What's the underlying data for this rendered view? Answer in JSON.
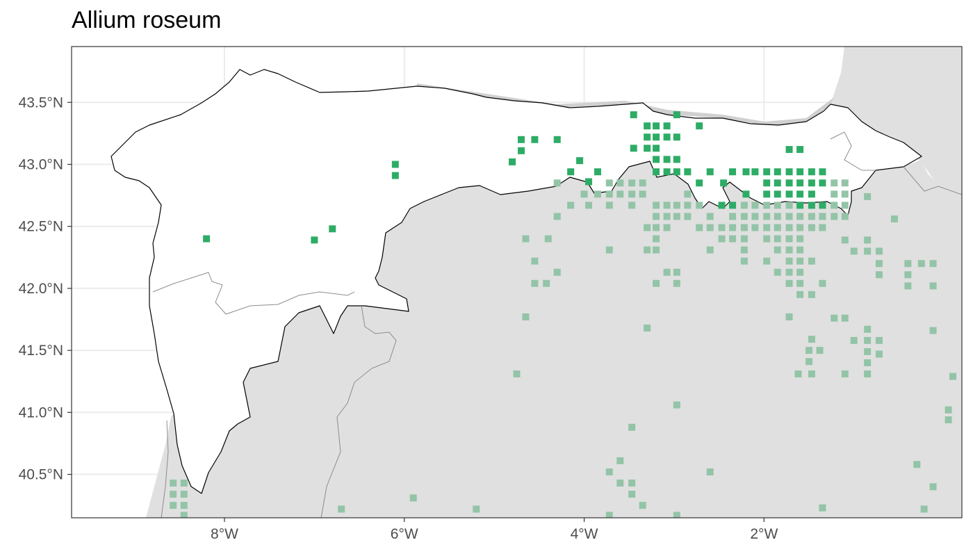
{
  "title": "Allium roseum",
  "colors": {
    "panel_bg": "#ffffff",
    "land_outside": "#e0e0e0",
    "grid": "#ebebeb",
    "region_fill": "#ffffff",
    "region_outline": "#000000",
    "province_line": "#8c8c8c",
    "occurrence_inside": "#2eac66",
    "occurrence_outside": "#93c4a7",
    "axis_text": "#4d4d4d"
  },
  "chart_data": {
    "type": "scatter",
    "title": "Allium roseum",
    "xlabel": "",
    "ylabel": "",
    "xlim": [
      -9.7,
      0.2
    ],
    "ylim": [
      40.15,
      43.95
    ],
    "x_ticks": [
      {
        "value": -8,
        "label": "8°W"
      },
      {
        "value": -6,
        "label": "6°W"
      },
      {
        "value": -4,
        "label": "4°W"
      },
      {
        "value": -2,
        "label": "2°W"
      }
    ],
    "y_ticks": [
      {
        "value": 43.5,
        "label": "43.5°N"
      },
      {
        "value": 43.0,
        "label": "43.0°N"
      },
      {
        "value": 42.5,
        "label": "42.5°N"
      },
      {
        "value": 42.0,
        "label": "42.0°N"
      },
      {
        "value": 41.5,
        "label": "41.5°N"
      },
      {
        "value": 41.0,
        "label": "41.0°N"
      },
      {
        "value": 40.5,
        "label": "40.5°N"
      }
    ],
    "grid": true,
    "legend": "none",
    "series": [
      {
        "points": [
          [
            -8.2,
            42.4
          ],
          [
            -7.0,
            42.39
          ],
          [
            -6.8,
            42.48
          ],
          [
            -6.1,
            43.0
          ],
          [
            -6.1,
            42.91
          ],
          [
            -4.8,
            43.02
          ],
          [
            -4.7,
            43.2
          ],
          [
            -4.7,
            43.11
          ],
          [
            -4.55,
            43.2
          ],
          [
            -4.3,
            43.2
          ],
          [
            -4.05,
            43.03
          ],
          [
            -4.15,
            42.94
          ],
          [
            -3.95,
            42.86
          ],
          [
            -3.85,
            42.94
          ],
          [
            -3.45,
            43.4
          ],
          [
            -3.3,
            43.31
          ],
          [
            -3.2,
            43.31
          ],
          [
            -3.08,
            43.31
          ],
          [
            -2.97,
            43.4
          ],
          [
            -3.3,
            43.22
          ],
          [
            -3.2,
            43.22
          ],
          [
            -3.08,
            43.22
          ],
          [
            -2.97,
            43.22
          ],
          [
            -3.45,
            43.13
          ],
          [
            -3.3,
            43.13
          ],
          [
            -3.2,
            43.13
          ],
          [
            -2.72,
            43.31
          ],
          [
            -3.2,
            43.04
          ],
          [
            -3.08,
            43.04
          ],
          [
            -2.97,
            43.04
          ],
          [
            -3.2,
            42.94
          ],
          [
            -3.08,
            42.94
          ],
          [
            -2.97,
            42.94
          ],
          [
            -2.85,
            42.94
          ],
          [
            -2.6,
            42.94
          ],
          [
            -2.35,
            42.94
          ],
          [
            -2.2,
            42.94
          ],
          [
            -2.1,
            42.94
          ],
          [
            -1.97,
            42.94
          ],
          [
            -1.85,
            42.94
          ],
          [
            -1.72,
            42.94
          ],
          [
            -1.6,
            42.94
          ],
          [
            -1.47,
            42.94
          ],
          [
            -1.35,
            42.94
          ],
          [
            -2.72,
            42.85
          ],
          [
            -2.45,
            42.85
          ],
          [
            -1.97,
            42.85
          ],
          [
            -1.85,
            42.85
          ],
          [
            -1.72,
            42.85
          ],
          [
            -1.6,
            42.85
          ],
          [
            -1.47,
            42.85
          ],
          [
            -1.35,
            42.85
          ],
          [
            -1.97,
            42.76
          ],
          [
            -1.85,
            42.76
          ],
          [
            -1.72,
            42.76
          ],
          [
            -1.6,
            42.76
          ],
          [
            -1.47,
            42.76
          ],
          [
            -2.2,
            42.76
          ],
          [
            -2.47,
            42.67
          ],
          [
            -2.35,
            42.67
          ],
          [
            -1.6,
            42.67
          ],
          [
            -1.47,
            42.67
          ],
          [
            -1.35,
            42.67
          ],
          [
            -1.72,
            43.12
          ],
          [
            -1.6,
            43.12
          ]
        ]
      },
      {
        "points": [
          [
            -4.3,
            42.85
          ],
          [
            -3.72,
            42.85
          ],
          [
            -3.6,
            42.85
          ],
          [
            -3.47,
            42.85
          ],
          [
            -3.35,
            42.85
          ],
          [
            -4.0,
            42.76
          ],
          [
            -3.85,
            42.76
          ],
          [
            -3.72,
            42.76
          ],
          [
            -3.6,
            42.76
          ],
          [
            -3.47,
            42.76
          ],
          [
            -3.35,
            42.76
          ],
          [
            -2.85,
            42.76
          ],
          [
            -1.22,
            42.85
          ],
          [
            -1.1,
            42.85
          ],
          [
            -1.22,
            42.76
          ],
          [
            -1.1,
            42.76
          ],
          [
            -0.85,
            42.74
          ],
          [
            -4.15,
            42.67
          ],
          [
            -3.95,
            42.67
          ],
          [
            -3.72,
            42.67
          ],
          [
            -3.47,
            42.67
          ],
          [
            -3.2,
            42.67
          ],
          [
            -3.08,
            42.67
          ],
          [
            -2.97,
            42.67
          ],
          [
            -2.85,
            42.67
          ],
          [
            -2.72,
            42.67
          ],
          [
            -2.22,
            42.67
          ],
          [
            -2.1,
            42.67
          ],
          [
            -1.97,
            42.67
          ],
          [
            -1.85,
            42.67
          ],
          [
            -1.72,
            42.67
          ],
          [
            -1.22,
            42.67
          ],
          [
            -1.1,
            42.67
          ],
          [
            -4.3,
            42.58
          ],
          [
            -3.2,
            42.58
          ],
          [
            -3.08,
            42.58
          ],
          [
            -2.97,
            42.58
          ],
          [
            -2.85,
            42.58
          ],
          [
            -2.6,
            42.58
          ],
          [
            -2.35,
            42.58
          ],
          [
            -2.22,
            42.58
          ],
          [
            -2.1,
            42.58
          ],
          [
            -1.97,
            42.58
          ],
          [
            -1.85,
            42.58
          ],
          [
            -1.72,
            42.58
          ],
          [
            -1.6,
            42.58
          ],
          [
            -1.47,
            42.58
          ],
          [
            -1.35,
            42.58
          ],
          [
            -1.22,
            42.58
          ],
          [
            -1.1,
            42.58
          ],
          [
            -0.55,
            42.56
          ],
          [
            -3.3,
            42.49
          ],
          [
            -3.2,
            42.49
          ],
          [
            -3.08,
            42.49
          ],
          [
            -2.72,
            42.49
          ],
          [
            -2.6,
            42.49
          ],
          [
            -2.47,
            42.49
          ],
          [
            -2.35,
            42.49
          ],
          [
            -2.22,
            42.49
          ],
          [
            -2.1,
            42.49
          ],
          [
            -1.97,
            42.49
          ],
          [
            -1.85,
            42.49
          ],
          [
            -1.72,
            42.49
          ],
          [
            -1.6,
            42.49
          ],
          [
            -1.47,
            42.49
          ],
          [
            -1.35,
            42.49
          ],
          [
            -4.65,
            42.4
          ],
          [
            -4.4,
            42.4
          ],
          [
            -3.2,
            42.4
          ],
          [
            -2.47,
            42.4
          ],
          [
            -2.35,
            42.4
          ],
          [
            -2.22,
            42.4
          ],
          [
            -1.97,
            42.4
          ],
          [
            -1.85,
            42.4
          ],
          [
            -1.72,
            42.4
          ],
          [
            -1.6,
            42.4
          ],
          [
            -1.1,
            42.39
          ],
          [
            -0.85,
            42.39
          ],
          [
            -3.72,
            42.31
          ],
          [
            -3.3,
            42.31
          ],
          [
            -3.2,
            42.31
          ],
          [
            -2.6,
            42.31
          ],
          [
            -2.22,
            42.31
          ],
          [
            -1.85,
            42.31
          ],
          [
            -1.72,
            42.31
          ],
          [
            -1.6,
            42.31
          ],
          [
            -1.0,
            42.3
          ],
          [
            -0.85,
            42.3
          ],
          [
            -0.72,
            42.3
          ],
          [
            -4.55,
            42.22
          ],
          [
            -2.22,
            42.22
          ],
          [
            -1.97,
            42.22
          ],
          [
            -1.72,
            42.22
          ],
          [
            -1.6,
            42.22
          ],
          [
            -1.47,
            42.22
          ],
          [
            -0.72,
            42.2
          ],
          [
            -0.4,
            42.2
          ],
          [
            -0.25,
            42.2
          ],
          [
            -0.12,
            42.2
          ],
          [
            -4.3,
            42.13
          ],
          [
            -3.08,
            42.13
          ],
          [
            -2.97,
            42.13
          ],
          [
            -1.85,
            42.13
          ],
          [
            -1.72,
            42.13
          ],
          [
            -1.6,
            42.13
          ],
          [
            -0.72,
            42.11
          ],
          [
            -0.4,
            42.11
          ],
          [
            -4.55,
            42.04
          ],
          [
            -4.42,
            42.04
          ],
          [
            -3.2,
            42.04
          ],
          [
            -2.97,
            42.04
          ],
          [
            -1.72,
            42.04
          ],
          [
            -1.6,
            42.04
          ],
          [
            -1.35,
            42.04
          ],
          [
            -0.4,
            42.02
          ],
          [
            -0.12,
            42.02
          ],
          [
            -1.6,
            41.95
          ],
          [
            -1.47,
            41.95
          ],
          [
            -4.65,
            41.77
          ],
          [
            -1.72,
            41.77
          ],
          [
            -1.22,
            41.76
          ],
          [
            -1.1,
            41.76
          ],
          [
            -3.3,
            41.68
          ],
          [
            -0.85,
            41.67
          ],
          [
            -0.12,
            41.66
          ],
          [
            -1.47,
            41.59
          ],
          [
            -1.0,
            41.58
          ],
          [
            -0.85,
            41.58
          ],
          [
            -0.72,
            41.58
          ],
          [
            -1.5,
            41.5
          ],
          [
            -1.38,
            41.5
          ],
          [
            -0.85,
            41.49
          ],
          [
            -0.72,
            41.47
          ],
          [
            -1.5,
            41.41
          ],
          [
            -0.85,
            41.4
          ],
          [
            -4.75,
            41.31
          ],
          [
            -1.62,
            41.31
          ],
          [
            -1.47,
            41.31
          ],
          [
            -1.1,
            41.31
          ],
          [
            -0.85,
            41.31
          ],
          [
            0.1,
            41.29
          ],
          [
            -2.97,
            41.06
          ],
          [
            0.05,
            41.02
          ],
          [
            0.05,
            40.94
          ],
          [
            -3.47,
            40.88
          ],
          [
            -3.6,
            40.61
          ],
          [
            -3.72,
            40.52
          ],
          [
            -2.6,
            40.52
          ],
          [
            -3.6,
            40.43
          ],
          [
            -3.47,
            40.43
          ],
          [
            -3.47,
            40.34
          ],
          [
            -3.35,
            40.25
          ],
          [
            -8.57,
            40.43
          ],
          [
            -8.45,
            40.43
          ],
          [
            -8.57,
            40.34
          ],
          [
            -8.45,
            40.34
          ],
          [
            -8.57,
            40.25
          ],
          [
            -8.45,
            40.25
          ],
          [
            -8.45,
            40.17
          ],
          [
            -5.9,
            40.31
          ],
          [
            -6.7,
            40.22
          ],
          [
            -5.2,
            40.22
          ],
          [
            -1.35,
            40.23
          ],
          [
            -0.22,
            40.22
          ],
          [
            -0.12,
            40.4
          ],
          [
            -0.3,
            40.58
          ],
          [
            -3.72,
            40.17
          ],
          [
            -2.97,
            40.17
          ]
        ]
      }
    ]
  }
}
